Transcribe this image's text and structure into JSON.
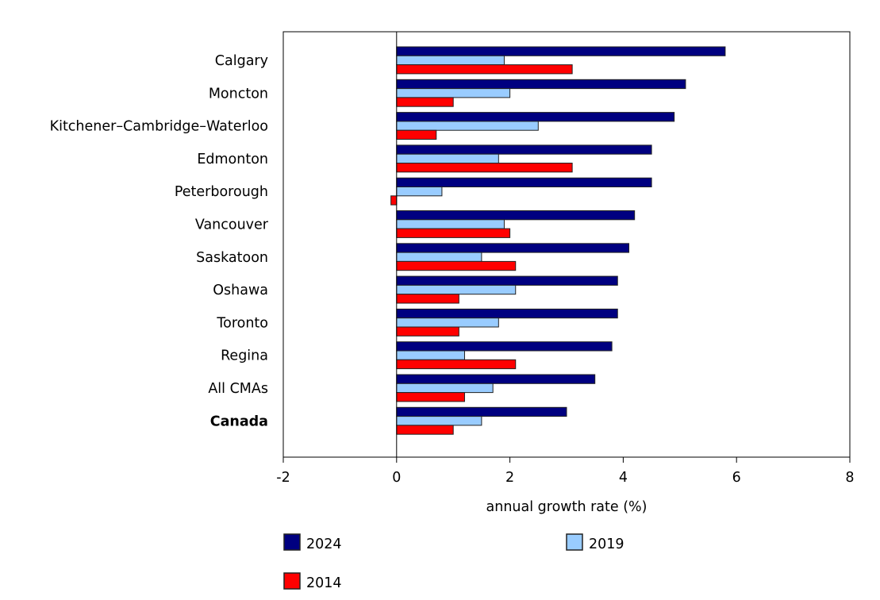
{
  "chart_data": {
    "type": "bar",
    "orientation": "horizontal",
    "categories": [
      "Calgary",
      "Moncton",
      "Kitchener–Cambridge–Waterloo",
      "Edmonton",
      "Peterborough",
      "Vancouver",
      "Saskatoon",
      "Oshawa",
      "Toronto",
      "Regina",
      "All CMAs",
      "Canada"
    ],
    "bold_categories": [
      "Canada"
    ],
    "series": [
      {
        "name": "2024",
        "color": "#000080",
        "values": [
          5.8,
          5.1,
          4.9,
          4.5,
          4.5,
          4.2,
          4.1,
          3.9,
          3.9,
          3.8,
          3.5,
          3.0
        ]
      },
      {
        "name": "2019",
        "color": "#99ccff",
        "values": [
          1.9,
          2.0,
          2.5,
          1.8,
          0.8,
          1.9,
          1.5,
          2.1,
          1.8,
          1.2,
          1.7,
          1.5
        ]
      },
      {
        "name": "2014",
        "color": "#ff0000",
        "values": [
          3.1,
          1.0,
          0.7,
          3.1,
          -0.1,
          2.0,
          2.1,
          1.1,
          1.1,
          2.1,
          1.2,
          1.0
        ]
      }
    ],
    "xlabel": "annual growth rate (%)",
    "ylabel": "",
    "title": "",
    "xlim": [
      -2,
      8
    ],
    "xticks": [
      "-2",
      "0",
      "2",
      "4",
      "6",
      "8"
    ],
    "grid": false,
    "legend": "bottom"
  }
}
